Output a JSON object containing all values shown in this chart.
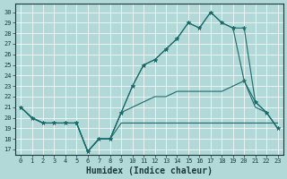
{
  "background_color": "#b2d8d8",
  "grid_color": "#ffffff",
  "line_color": "#1a6b6b",
  "xlabel": "Humidex (Indice chaleur)",
  "xlabel_fontsize": 7,
  "ylim": [
    16.5,
    30.8
  ],
  "xlim": [
    -0.5,
    23.5
  ],
  "yticks": [
    17,
    18,
    19,
    20,
    21,
    22,
    23,
    24,
    25,
    26,
    27,
    28,
    29,
    30
  ],
  "xticks": [
    0,
    1,
    2,
    3,
    4,
    5,
    6,
    7,
    8,
    9,
    10,
    11,
    12,
    13,
    14,
    15,
    16,
    17,
    18,
    19,
    20,
    21,
    22,
    23
  ],
  "series": [
    {
      "x": [
        0,
        1,
        2,
        3,
        4,
        5,
        6,
        7,
        8,
        9,
        10,
        11,
        12,
        13,
        14,
        15,
        16,
        17,
        18,
        19,
        20,
        21,
        22,
        23
      ],
      "y": [
        21,
        20,
        19.5,
        19.5,
        19.5,
        19.5,
        16.8,
        18,
        18,
        19.5,
        19.5,
        19.5,
        19.5,
        19.5,
        19.5,
        19.5,
        19.5,
        19.5,
        19.5,
        19.5,
        19.5,
        19.5,
        19.5,
        19.5
      ],
      "has_marker": false
    },
    {
      "x": [
        0,
        1,
        2,
        3,
        4,
        5,
        6,
        7,
        8,
        9,
        10,
        11,
        12,
        13,
        14,
        15,
        16,
        17,
        18,
        19,
        20,
        21,
        22,
        23
      ],
      "y": [
        21,
        20,
        19.5,
        19.5,
        19.5,
        19.5,
        16.8,
        18,
        18,
        20.5,
        21,
        21.5,
        22,
        22,
        22.5,
        22.5,
        22.5,
        22.5,
        22.5,
        23,
        23.5,
        21,
        20.5,
        19
      ],
      "has_marker": false
    },
    {
      "x": [
        0,
        1,
        2,
        3,
        4,
        5,
        6,
        7,
        8,
        9,
        10,
        11,
        12,
        13,
        14,
        15,
        16,
        17,
        18,
        19,
        20,
        21,
        22,
        23
      ],
      "y": [
        21,
        20,
        19.5,
        19.5,
        19.5,
        19.5,
        16.8,
        18,
        18,
        20.5,
        23,
        25,
        25.5,
        26.5,
        27.5,
        29,
        28.5,
        30,
        29,
        28.5,
        28.5,
        21.5,
        20.5,
        19
      ],
      "has_marker": true
    },
    {
      "x": [
        0,
        1,
        2,
        3,
        4,
        5,
        6,
        7,
        8,
        9,
        10,
        11,
        12,
        13,
        14,
        15,
        16,
        17,
        18,
        19,
        20,
        21,
        22,
        23
      ],
      "y": [
        21,
        20,
        19.5,
        19.5,
        19.5,
        19.5,
        16.8,
        18,
        18,
        20.5,
        23,
        25,
        25.5,
        26.5,
        27.5,
        29,
        28.5,
        30,
        29,
        28.5,
        23.5,
        21.5,
        20.5,
        19
      ],
      "has_marker": true
    }
  ]
}
